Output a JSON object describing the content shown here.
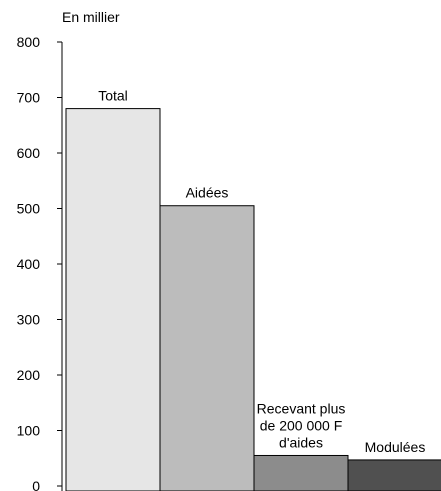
{
  "chart_data": {
    "type": "bar",
    "unit_label": "En millier",
    "categories": [
      "Total",
      "Aidées",
      "Recevant plus de 200 000 F d'aides",
      "Modulées"
    ],
    "category_label_lines": [
      [
        "Total"
      ],
      [
        "Aidées"
      ],
      [
        "Recevant plus",
        "de 200 000 F",
        "d'aides"
      ],
      [
        "Modulées"
      ]
    ],
    "values": [
      680,
      505,
      55,
      47
    ],
    "bar_colors": [
      "#e6e6e6",
      "#bcbcbc",
      "#8c8c8c",
      "#505050"
    ],
    "ylim": [
      0,
      800
    ],
    "yticks": [
      0,
      100,
      200,
      300,
      400,
      500,
      600,
      700,
      800
    ],
    "grid": false,
    "legend": "none"
  }
}
